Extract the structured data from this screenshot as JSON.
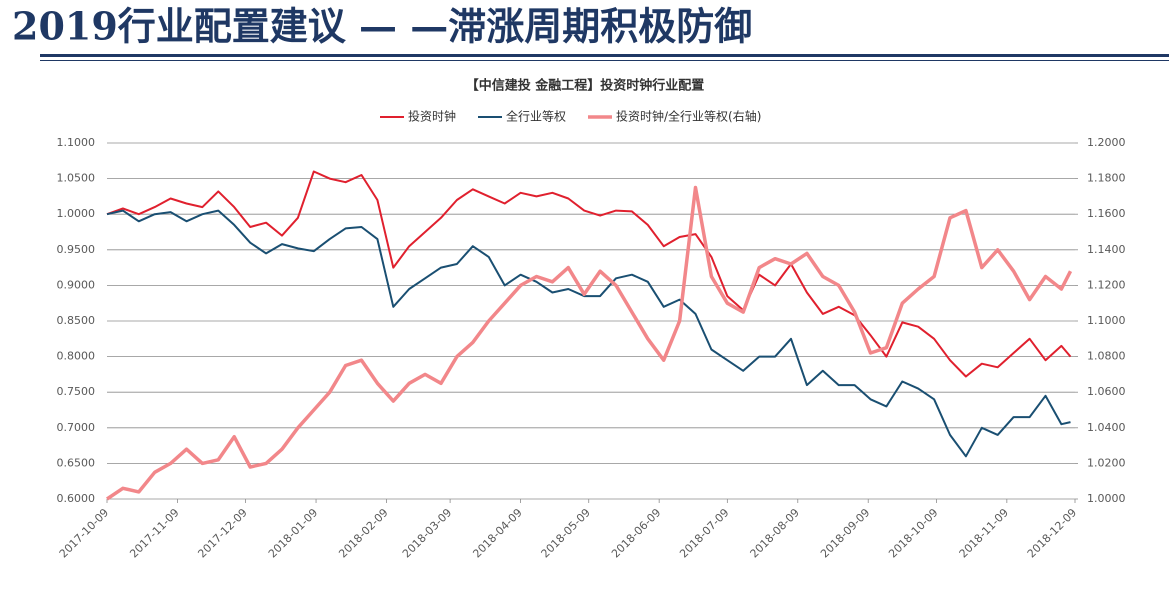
{
  "header": {
    "title": "2019行业配置建议 — —滞涨周期积极防御"
  },
  "chart_data": {
    "type": "line",
    "title": "【中信建投 金融工程】投资时钟行业配置",
    "legend": "top",
    "grid": true,
    "x": [
      "2017-10-09",
      "2017-10-16",
      "2017-10-23",
      "2017-10-30",
      "2017-11-06",
      "2017-11-13",
      "2017-11-20",
      "2017-11-27",
      "2017-12-04",
      "2017-12-11",
      "2017-12-18",
      "2017-12-25",
      "2018-01-01",
      "2018-01-08",
      "2018-01-15",
      "2018-01-22",
      "2018-01-29",
      "2018-02-05",
      "2018-02-12",
      "2018-02-19",
      "2018-02-26",
      "2018-03-05",
      "2018-03-12",
      "2018-03-19",
      "2018-03-26",
      "2018-04-02",
      "2018-04-09",
      "2018-04-16",
      "2018-04-23",
      "2018-04-30",
      "2018-05-07",
      "2018-05-14",
      "2018-05-21",
      "2018-05-28",
      "2018-06-04",
      "2018-06-11",
      "2018-06-18",
      "2018-06-25",
      "2018-07-02",
      "2018-07-09",
      "2018-07-16",
      "2018-07-23",
      "2018-07-30",
      "2018-08-06",
      "2018-08-13",
      "2018-08-20",
      "2018-08-27",
      "2018-09-03",
      "2018-09-10",
      "2018-09-17",
      "2018-09-24",
      "2018-10-01",
      "2018-10-08",
      "2018-10-15",
      "2018-10-22",
      "2018-10-29",
      "2018-11-05",
      "2018-11-12",
      "2018-11-19",
      "2018-11-26",
      "2018-12-03",
      "2018-12-07"
    ],
    "xlim": [
      "2017-10-09",
      "2018-12-09"
    ],
    "xticks": [
      "2017-10-09",
      "2017-11-09",
      "2017-12-09",
      "2018-01-09",
      "2018-02-09",
      "2018-03-09",
      "2018-04-09",
      "2018-05-09",
      "2018-06-09",
      "2018-07-09",
      "2018-08-09",
      "2018-09-09",
      "2018-10-09",
      "2018-11-09",
      "2018-12-09"
    ],
    "ylim": [
      0.6,
      1.1
    ],
    "yticks": [
      {
        "value": 0.6,
        "label": "0.6000"
      },
      {
        "value": 0.65,
        "label": "0.6500"
      },
      {
        "value": 0.7,
        "label": "0.7000"
      },
      {
        "value": 0.75,
        "label": "0.7500"
      },
      {
        "value": 0.8,
        "label": "0.8000"
      },
      {
        "value": 0.85,
        "label": "0.8500"
      },
      {
        "value": 0.9,
        "label": "0.9000"
      },
      {
        "value": 0.95,
        "label": "0.9500"
      },
      {
        "value": 1.0,
        "label": "1.0000"
      },
      {
        "value": 1.05,
        "label": "1.0500"
      },
      {
        "value": 1.1,
        "label": "1.1000"
      }
    ],
    "y2lim": [
      1.0,
      1.2
    ],
    "y2ticks": [
      {
        "value": 1.0,
        "label": "1.0000"
      },
      {
        "value": 1.02,
        "label": "1.0200"
      },
      {
        "value": 1.04,
        "label": "1.0400"
      },
      {
        "value": 1.06,
        "label": "1.0600"
      },
      {
        "value": 1.08,
        "label": "1.0800"
      },
      {
        "value": 1.1,
        "label": "1.1000"
      },
      {
        "value": 1.12,
        "label": "1.1200"
      },
      {
        "value": 1.14,
        "label": "1.1400"
      },
      {
        "value": 1.16,
        "label": "1.1600"
      },
      {
        "value": 1.18,
        "label": "1.1800"
      },
      {
        "value": 1.2,
        "label": "1.2000"
      }
    ],
    "series": [
      {
        "name": "投资时钟",
        "color": "#e0202e",
        "values": [
          1.0,
          1.008,
          1.0,
          1.01,
          1.022,
          1.015,
          1.01,
          1.032,
          1.01,
          0.982,
          0.988,
          0.97,
          0.995,
          1.06,
          1.05,
          1.045,
          1.055,
          1.02,
          0.925,
          0.955,
          0.975,
          0.995,
          1.02,
          1.035,
          1.025,
          1.015,
          1.03,
          1.025,
          1.03,
          1.022,
          1.005,
          0.998,
          1.005,
          1.004,
          0.985,
          0.955,
          0.968,
          0.972,
          0.94,
          0.885,
          0.865,
          0.915,
          0.9,
          0.93,
          0.89,
          0.86,
          0.87,
          0.858,
          0.83,
          0.8,
          0.848,
          0.842,
          0.825,
          0.795,
          0.772,
          0.79,
          0.785,
          0.805,
          0.825,
          0.795,
          0.815,
          0.8
        ]
      },
      {
        "name": "全行业等权",
        "color": "#1a4f72",
        "values": [
          1.0,
          1.005,
          0.99,
          1.0,
          1.003,
          0.99,
          1.0,
          1.005,
          0.985,
          0.96,
          0.945,
          0.958,
          0.952,
          0.948,
          0.965,
          0.98,
          0.982,
          0.965,
          0.87,
          0.895,
          0.91,
          0.925,
          0.93,
          0.955,
          0.94,
          0.9,
          0.915,
          0.905,
          0.89,
          0.895,
          0.885,
          0.885,
          0.91,
          0.915,
          0.905,
          0.87,
          0.88,
          0.86,
          0.81,
          0.795,
          0.78,
          0.8,
          0.8,
          0.825,
          0.76,
          0.78,
          0.76,
          0.76,
          0.74,
          0.73,
          0.765,
          0.755,
          0.74,
          0.69,
          0.66,
          0.7,
          0.69,
          0.715,
          0.715,
          0.745,
          0.705,
          0.708
        ]
      },
      {
        "name": "投资时钟/全行业等权(右轴)",
        "color": "#f2878a",
        "axis": "y2",
        "values": [
          1.0,
          1.006,
          1.004,
          1.015,
          1.02,
          1.028,
          1.02,
          1.022,
          1.035,
          1.018,
          1.02,
          1.028,
          1.04,
          1.05,
          1.06,
          1.075,
          1.078,
          1.065,
          1.055,
          1.065,
          1.07,
          1.065,
          1.08,
          1.088,
          1.1,
          1.11,
          1.12,
          1.125,
          1.122,
          1.13,
          1.115,
          1.128,
          1.12,
          1.105,
          1.09,
          1.078,
          1.1,
          1.175,
          1.125,
          1.11,
          1.105,
          1.13,
          1.135,
          1.132,
          1.138,
          1.125,
          1.12,
          1.105,
          1.082,
          1.085,
          1.11,
          1.118,
          1.125,
          1.158,
          1.162,
          1.13,
          1.14,
          1.128,
          1.112,
          1.125,
          1.118,
          1.128
        ]
      }
    ]
  }
}
